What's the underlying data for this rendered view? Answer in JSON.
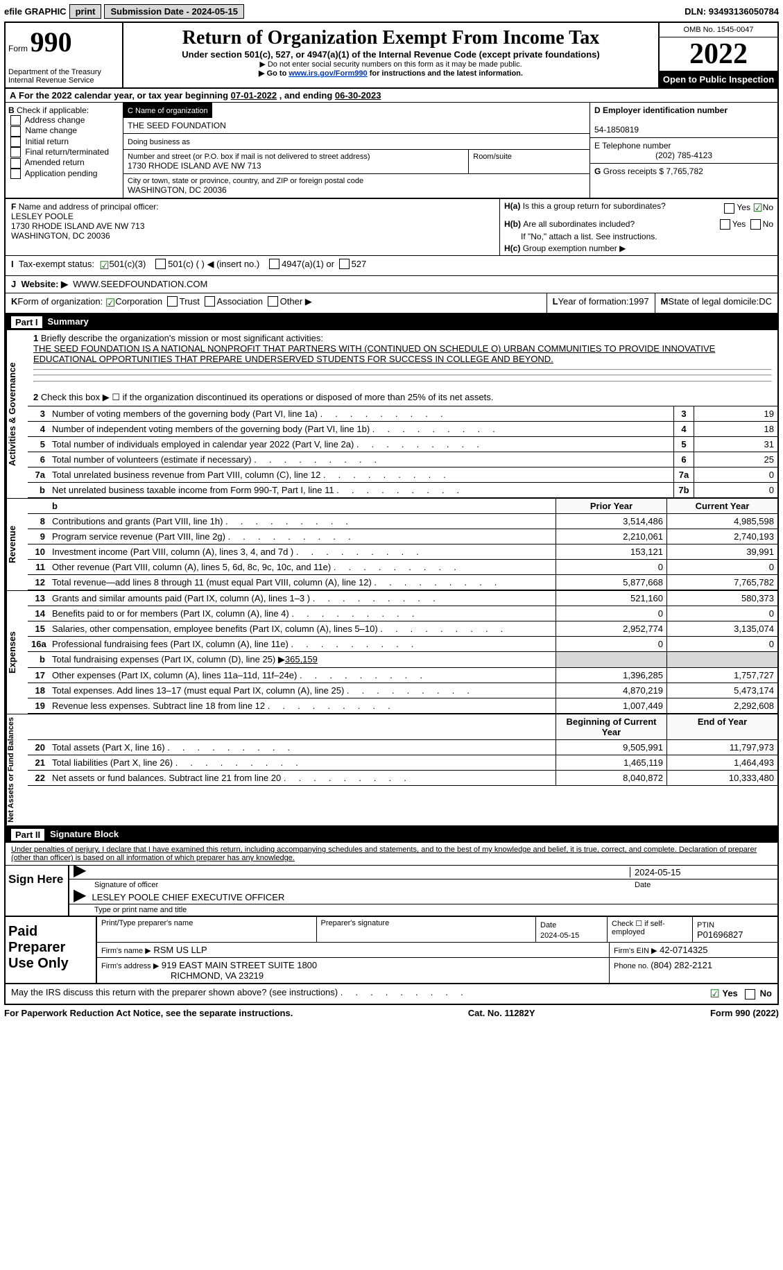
{
  "topbar": {
    "efile": "efile GRAPHIC",
    "print": "print",
    "subdate_label": "Submission Date - ",
    "subdate": "2024-05-15",
    "dln_label": "DLN: ",
    "dln": "93493136050784"
  },
  "header": {
    "form": "Form",
    "form_no": "990",
    "dept": "Department of the Treasury",
    "irs": "Internal Revenue Service",
    "title": "Return of Organization Exempt From Income Tax",
    "sub": "Under section 501(c), 527, or 4947(a)(1) of the Internal Revenue Code (except private foundations)",
    "note1_arrow": "▶",
    "note1": "Do not enter social security numbers on this form as it may be made public.",
    "note2_pre": "Go to ",
    "note2_link": "www.irs.gov/Form990",
    "note2_post": " for instructions and the latest information.",
    "omb": "OMB No. 1545-0047",
    "year": "2022",
    "inspect": "Open to Public Inspection"
  },
  "A": {
    "label": "A",
    "text": "For the 2022 calendar year, or tax year beginning ",
    "begin": "07-01-2022",
    "mid": " , and ending ",
    "end": "06-30-2023"
  },
  "B": {
    "label": "B",
    "check": "Check if applicable:",
    "opts": [
      "Address change",
      "Name change",
      "Initial return",
      "Final return/terminated",
      "Amended return",
      "Application pending"
    ]
  },
  "C": {
    "name_label": "C Name of organization",
    "name": "THE SEED FOUNDATION",
    "dba_label": "Doing business as",
    "addr_label": "Number and street (or P.O. box if mail is not delivered to street address)",
    "room_label": "Room/suite",
    "addr": "1730 RHODE ISLAND AVE NW 713",
    "city_label": "City or town, state or province, country, and ZIP or foreign postal code",
    "city": "WASHINGTON, DC  20036"
  },
  "D": {
    "label": "D Employer identification number",
    "val": "54-1850819"
  },
  "E": {
    "label": "E Telephone number",
    "val": "(202) 785-4123"
  },
  "G": {
    "label": "G",
    "text": "Gross receipts $",
    "val": "7,765,782"
  },
  "F": {
    "label": "F",
    "text": "Name and address of principal officer:",
    "name": "LESLEY POOLE",
    "addr": "1730 RHODE ISLAND AVE NW 713",
    "city": "WASHINGTON, DC  20036"
  },
  "H": {
    "a": "Is this a group return for subordinates?",
    "b": "Are all subordinates included?",
    "b2": "If \"No,\" attach a list. See instructions.",
    "c": "Group exemption number ▶"
  },
  "I": {
    "label": "I",
    "text": "Tax-exempt status:",
    "c3": "501(c)(3)",
    "c": "501(c) (  ) ◀ (insert no.)",
    "a1": "4947(a)(1) or",
    "s527": "527"
  },
  "J": {
    "label": "J",
    "text": "Website: ▶",
    "val": "WWW.SEEDFOUNDATION.COM"
  },
  "K": {
    "label": "K",
    "text": "Form of organization:",
    "corp": "Corporation",
    "trust": "Trust",
    "assoc": "Association",
    "other": "Other ▶"
  },
  "L": {
    "text": "Year of formation: ",
    "val": "1997"
  },
  "M": {
    "text": "State of legal domicile: ",
    "val": "DC"
  },
  "partI": {
    "title": "Summary"
  },
  "activities": {
    "l1a": "Briefly describe the organization's mission or most significant activities:",
    "l1b": "THE SEED FOUNDATION IS A NATIONAL NONPROFIT THAT PARTNERS WITH (CONTINUED ON SCHEDULE O) URBAN COMMUNITIES TO PROVIDE INNOVATIVE EDUCATIONAL OPPORTUNITIES THAT PREPARE UNDERSERVED STUDENTS FOR SUCCESS IN COLLEGE AND BEYOND.",
    "l2": "Check this box ▶ ☐ if the organization discontinued its operations or disposed of more than 25% of its net assets.",
    "rows": [
      {
        "n": "3",
        "t": "Number of voting members of the governing body (Part VI, line 1a)",
        "nc": "3",
        "v": "19"
      },
      {
        "n": "4",
        "t": "Number of independent voting members of the governing body (Part VI, line 1b)",
        "nc": "4",
        "v": "18"
      },
      {
        "n": "5",
        "t": "Total number of individuals employed in calendar year 2022 (Part V, line 2a)",
        "nc": "5",
        "v": "31"
      },
      {
        "n": "6",
        "t": "Total number of volunteers (estimate if necessary)",
        "nc": "6",
        "v": "25"
      },
      {
        "n": "7a",
        "t": "Total unrelated business revenue from Part VIII, column (C), line 12",
        "nc": "7a",
        "v": "0"
      },
      {
        "n": "b",
        "t": "Net unrelated business taxable income from Form 990-T, Part I, line 11",
        "nc": "7b",
        "v": "0"
      }
    ]
  },
  "revenue": {
    "head": {
      "py": "Prior Year",
      "cy": "Current Year"
    },
    "rows": [
      {
        "n": "8",
        "t": "Contributions and grants (Part VIII, line 1h)",
        "py": "3,514,486",
        "cy": "4,985,598"
      },
      {
        "n": "9",
        "t": "Program service revenue (Part VIII, line 2g)",
        "py": "2,210,061",
        "cy": "2,740,193"
      },
      {
        "n": "10",
        "t": "Investment income (Part VIII, column (A), lines 3, 4, and 7d )",
        "py": "153,121",
        "cy": "39,991"
      },
      {
        "n": "11",
        "t": "Other revenue (Part VIII, column (A), lines 5, 6d, 8c, 9c, 10c, and 11e)",
        "py": "0",
        "cy": "0"
      },
      {
        "n": "12",
        "t": "Total revenue—add lines 8 through 11 (must equal Part VIII, column (A), line 12)",
        "py": "5,877,668",
        "cy": "7,765,782"
      }
    ]
  },
  "expenses": {
    "rows": [
      {
        "n": "13",
        "t": "Grants and similar amounts paid (Part IX, column (A), lines 1–3 )",
        "py": "521,160",
        "cy": "580,373"
      },
      {
        "n": "14",
        "t": "Benefits paid to or for members (Part IX, column (A), line 4)",
        "py": "0",
        "cy": "0"
      },
      {
        "n": "15",
        "t": "Salaries, other compensation, employee benefits (Part IX, column (A), lines 5–10)",
        "py": "2,952,774",
        "cy": "3,135,074"
      },
      {
        "n": "16a",
        "t": "Professional fundraising fees (Part IX, column (A), line 11e)",
        "py": "0",
        "cy": "0"
      }
    ],
    "row_b": {
      "n": "b",
      "t": "Total fundraising expenses (Part IX, column (D), line 25) ▶",
      "v": "365,159"
    },
    "rows2": [
      {
        "n": "17",
        "t": "Other expenses (Part IX, column (A), lines 11a–11d, 11f–24e)",
        "py": "1,396,285",
        "cy": "1,757,727"
      },
      {
        "n": "18",
        "t": "Total expenses. Add lines 13–17 (must equal Part IX, column (A), line 25)",
        "py": "4,870,219",
        "cy": "5,473,174"
      },
      {
        "n": "19",
        "t": "Revenue less expenses. Subtract line 18 from line 12",
        "py": "1,007,449",
        "cy": "2,292,608"
      }
    ]
  },
  "netassets": {
    "head": {
      "py": "Beginning of Current Year",
      "cy": "End of Year"
    },
    "rows": [
      {
        "n": "20",
        "t": "Total assets (Part X, line 16)",
        "py": "9,505,991",
        "cy": "11,797,973"
      },
      {
        "n": "21",
        "t": "Total liabilities (Part X, line 26)",
        "py": "1,465,119",
        "cy": "1,464,493"
      },
      {
        "n": "22",
        "t": "Net assets or fund balances. Subtract line 21 from line 20",
        "py": "8,040,872",
        "cy": "10,333,480"
      }
    ]
  },
  "partII": {
    "title": "Signature Block"
  },
  "perjury": "Under penalties of perjury, I declare that I have examined this return, including accompanying schedules and statements, and to the best of my knowledge and belief, it is true, correct, and complete. Declaration of preparer (other than officer) is based on all information of which preparer has any knowledge.",
  "sign": {
    "here": "Sign Here",
    "sig_off": "Signature of officer",
    "date": "Date",
    "date_val": "2024-05-15",
    "name": "LESLEY POOLE  CHIEF EXECUTIVE OFFICER",
    "name_label": "Type or print name and title"
  },
  "prep": {
    "here": "Paid Preparer Use Only",
    "c1": "Print/Type preparer's name",
    "c2": "Preparer's signature",
    "c3": "Date",
    "c3v": "2024-05-15",
    "c4": "Check ☐ if self-employed",
    "c5": "PTIN",
    "c5v": "P01696827",
    "firm_l": "Firm's name   ▶",
    "firm_v": "RSM US LLP",
    "ein_l": "Firm's EIN ▶",
    "ein_v": "42-0714325",
    "addr_l": "Firm's address ▶",
    "addr_v": "919 EAST MAIN STREET SUITE 1800",
    "addr_v2": "RICHMOND, VA  23219",
    "ph_l": "Phone no. ",
    "ph_v": "(804) 282-2121"
  },
  "discuss": "May the IRS discuss this return with the preparer shown above? (see instructions)",
  "footer": {
    "pra": "For Paperwork Reduction Act Notice, see the separate instructions.",
    "cat": "Cat. No. 11282Y",
    "fn": "Form 990 (2022)"
  },
  "yesno": {
    "y": "Yes",
    "n": "No"
  }
}
